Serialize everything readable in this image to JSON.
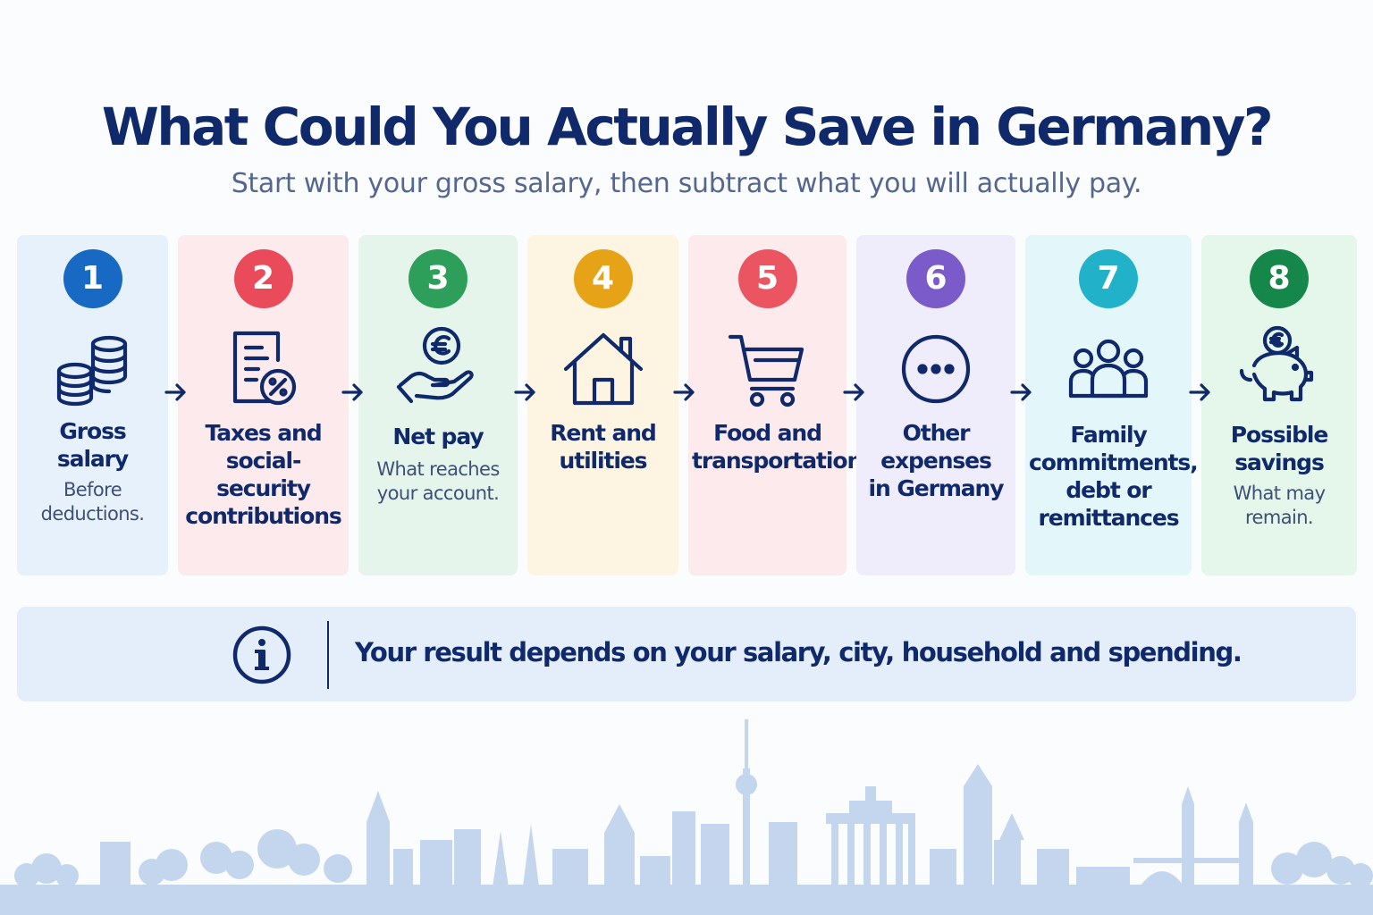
{
  "title": "What Could You Actually Save in Germany?",
  "subtitle": "Start with your gross salary, then subtract what you will actually pay.",
  "steps": [
    {
      "number": "1",
      "label": [
        "Gross",
        "salary"
      ],
      "desc": [
        "Before",
        "deductions."
      ],
      "icon": "coins-icon",
      "color": "#1769c4",
      "bg": "#e7f1fb"
    },
    {
      "number": "2",
      "label": [
        "Taxes and",
        "social-security",
        "contributions"
      ],
      "desc": [],
      "icon": "tax-document-icon",
      "color": "#ea4b5b",
      "bg": "#fdeaec"
    },
    {
      "number": "3",
      "label": [
        "Net pay"
      ],
      "desc": [
        "What reaches",
        "your account."
      ],
      "icon": "hand-euro-icon",
      "color": "#2e9e5b",
      "bg": "#e5f5ec"
    },
    {
      "number": "4",
      "label": [
        "Rent and",
        "utilities"
      ],
      "desc": [],
      "icon": "house-icon",
      "color": "#e6a317",
      "bg": "#fdf5e2"
    },
    {
      "number": "5",
      "label": [
        "Food and",
        "transportation"
      ],
      "desc": [],
      "icon": "shopping-cart-icon",
      "color": "#ea5561",
      "bg": "#fdeaec"
    },
    {
      "number": "6",
      "label": [
        "Other",
        "expenses",
        "in Germany"
      ],
      "desc": [],
      "icon": "more-dots-icon",
      "color": "#7a5bc9",
      "bg": "#efecfb"
    },
    {
      "number": "7",
      "label": [
        "Family",
        "commitments,",
        "debt or",
        "remittances"
      ],
      "desc": [],
      "icon": "family-icon",
      "color": "#21b2c9",
      "bg": "#e3f6fa"
    },
    {
      "number": "8",
      "label": [
        "Possible",
        "savings"
      ],
      "desc": [
        "What may",
        "remain."
      ],
      "icon": "piggy-bank-icon",
      "color": "#15874a",
      "bg": "#e5f6ea"
    }
  ],
  "info": {
    "icon": "info-icon",
    "text": "Your result depends on your salary, city, household and spending."
  },
  "colors": {
    "navy": "#10296a",
    "skyline": "#c3d6ee"
  }
}
